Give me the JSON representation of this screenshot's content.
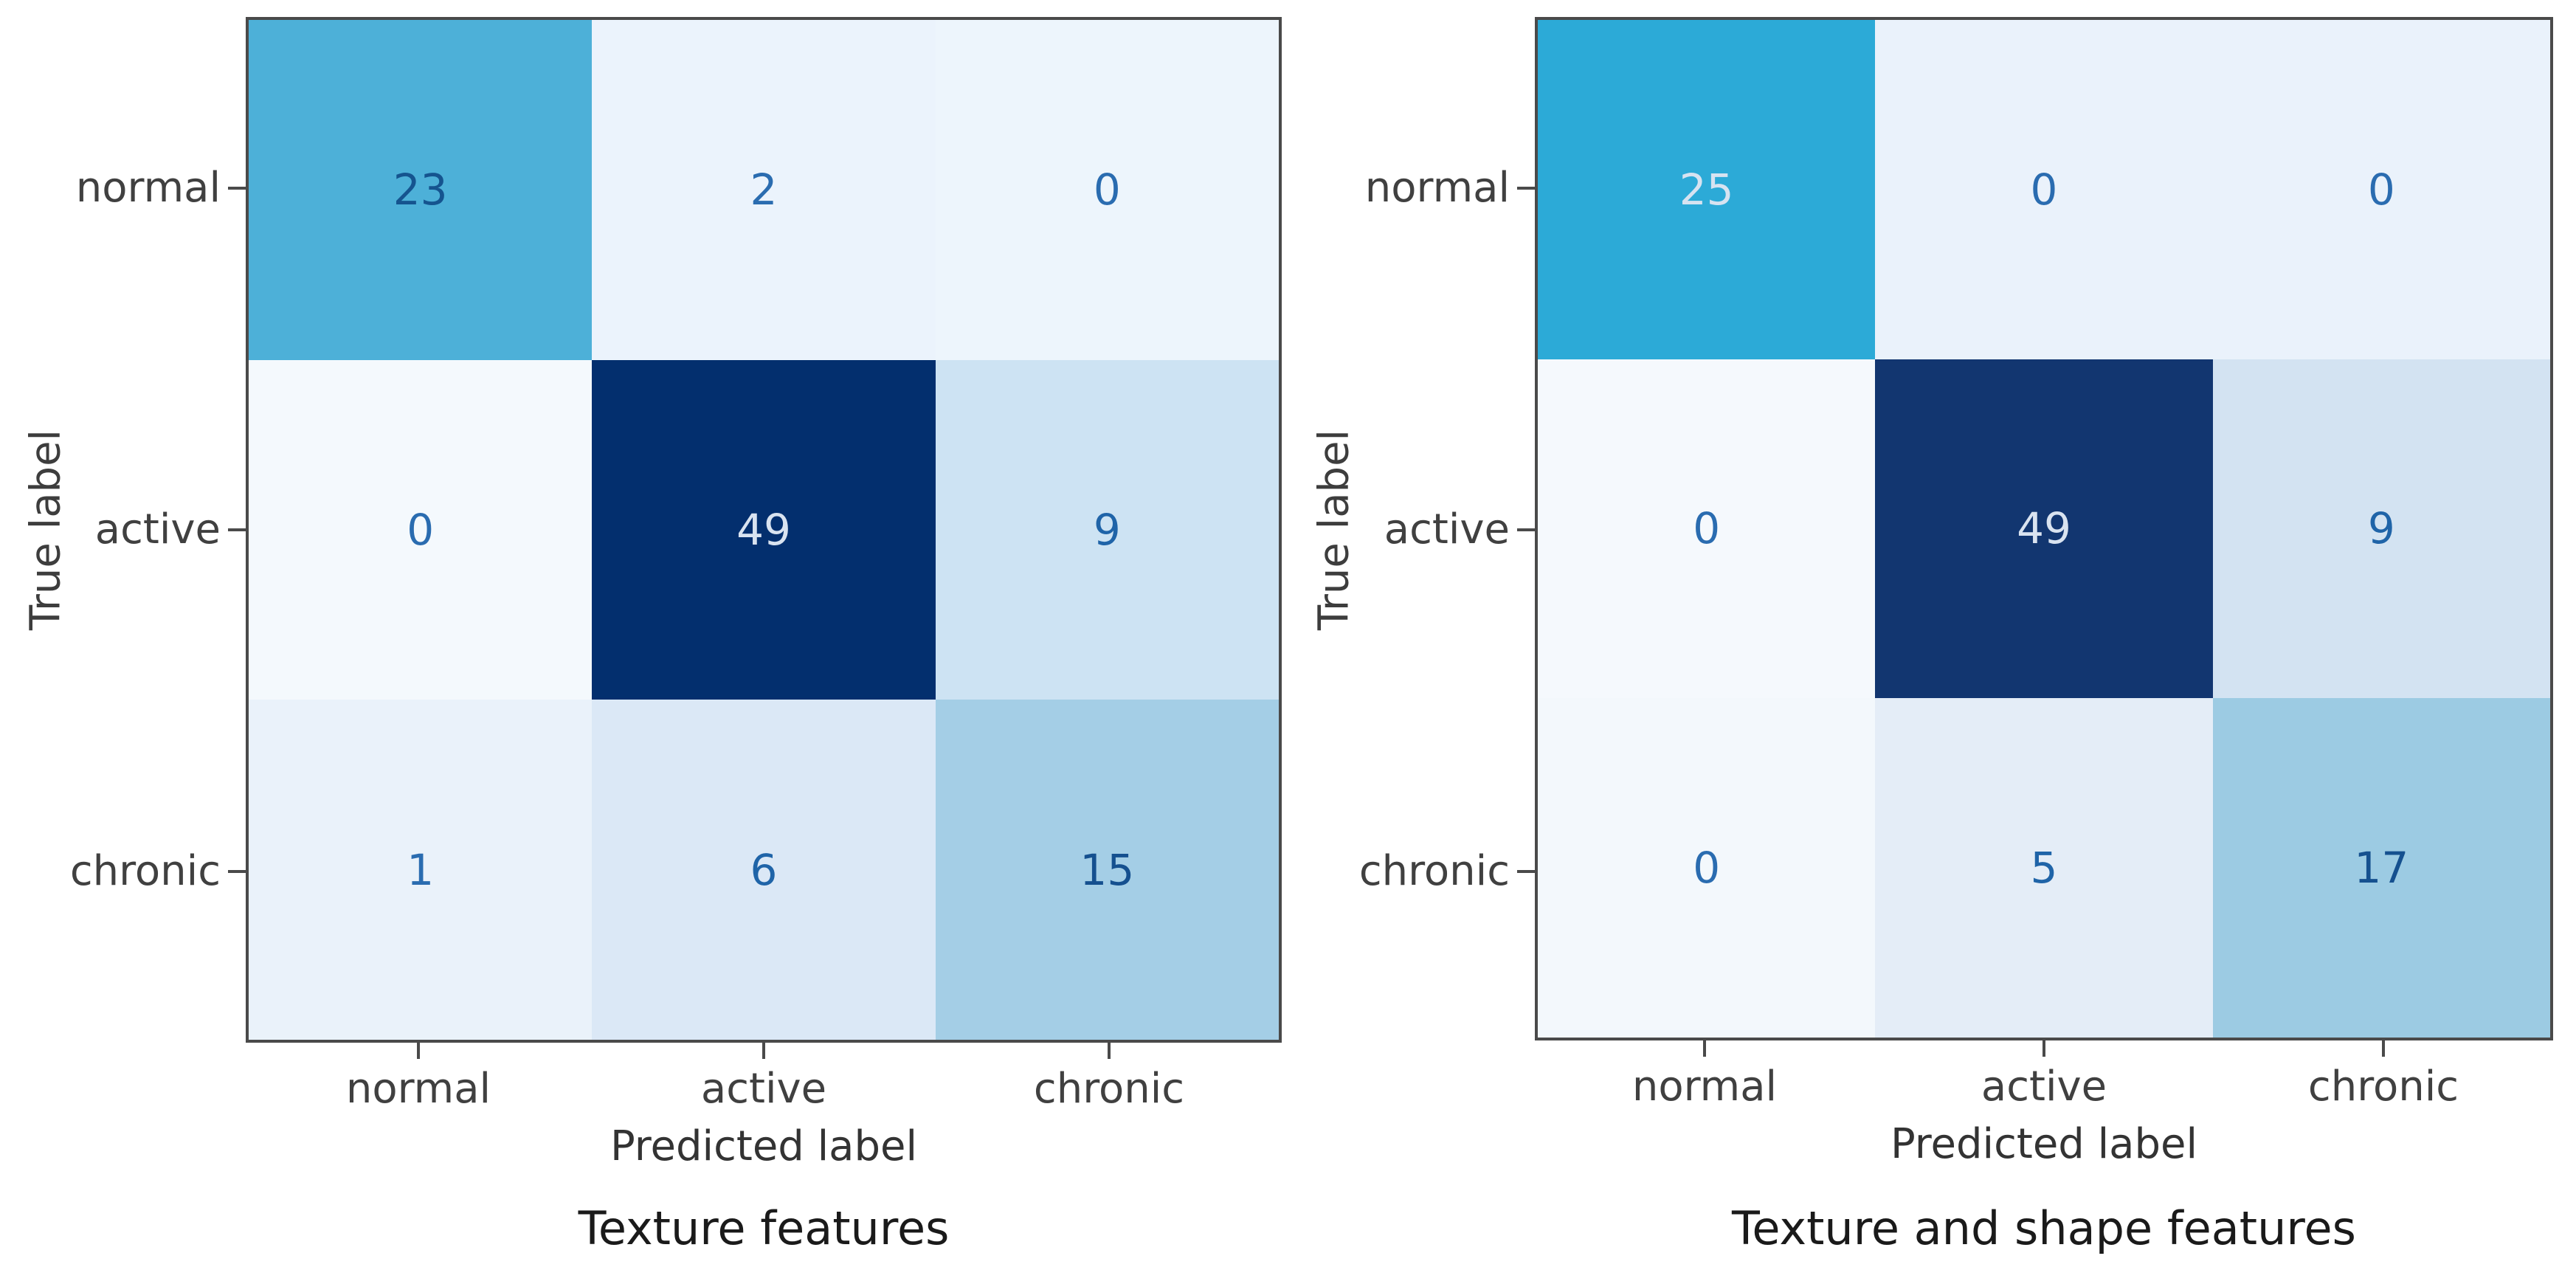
{
  "figure": {
    "background": "#ffffff",
    "axis_color": "#4a4a4a",
    "tick_text_color": "#404040",
    "title_text_color": "#1a1a1a"
  },
  "chart_data": [
    {
      "type": "heatmap",
      "title": "Texture features",
      "xlabel": "Predicted label",
      "ylabel": "True label",
      "x_categories": [
        "normal",
        "active",
        "chronic"
      ],
      "y_categories": [
        "normal",
        "active",
        "chronic"
      ],
      "values": [
        [
          23,
          2,
          0
        ],
        [
          0,
          49,
          9
        ],
        [
          1,
          6,
          15
        ]
      ],
      "colormap": "Blues",
      "value_range": [
        0,
        49
      ],
      "cell_colors": [
        [
          "#4db0d8",
          "#ebf3fc",
          "#edf5fc"
        ],
        [
          "#f4f9fd",
          "#032f6e",
          "#cde3f3"
        ],
        [
          "#eaf2fa",
          "#dbe8f6",
          "#a4cee6"
        ]
      ],
      "text_colors": [
        [
          "#15548f",
          "#2a6cb0",
          "#2a6cb0"
        ],
        [
          "#2a6cb0",
          "#d9e3f0",
          "#1f64a8"
        ],
        [
          "#2a6cb0",
          "#1f64a8",
          "#15508f"
        ]
      ]
    },
    {
      "type": "heatmap",
      "title": "Texture and shape features",
      "xlabel": "Predicted label",
      "ylabel": "True label",
      "x_categories": [
        "normal",
        "active",
        "chronic"
      ],
      "y_categories": [
        "normal",
        "active",
        "chronic"
      ],
      "values": [
        [
          25,
          0,
          0
        ],
        [
          0,
          49,
          9
        ],
        [
          0,
          5,
          17
        ]
      ],
      "colormap": "Blues",
      "value_range": [
        0,
        49
      ],
      "cell_colors": [
        [
          "#2caad7",
          "#eaf2fb",
          "#eaf2fb"
        ],
        [
          "#f5f9fd",
          "#123670",
          "#d3e3f2"
        ],
        [
          "#f3f8fc",
          "#e4edf7",
          "#9ccbe3"
        ]
      ],
      "text_colors": [
        [
          "#d7e3f1",
          "#2a6cb0",
          "#2a6cb0"
        ],
        [
          "#2a6cb0",
          "#d9e3f0",
          "#1f64a8"
        ],
        [
          "#2a6cb0",
          "#1f64a8",
          "#15508f"
        ]
      ]
    }
  ]
}
